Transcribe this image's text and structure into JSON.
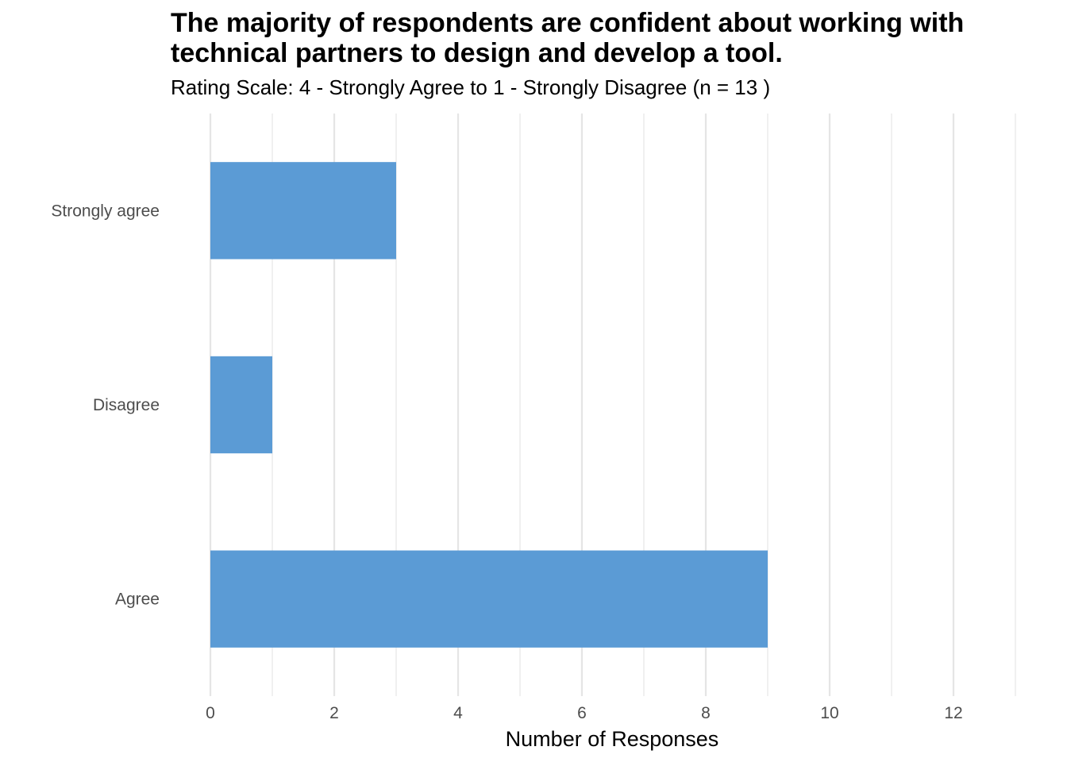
{
  "chart_data": {
    "type": "bar",
    "orientation": "horizontal",
    "title": "The majority of respondents are confident about working with technical partners to design and develop a tool.",
    "subtitle": "Rating Scale: 4 - Strongly Agree to 1 - Strongly Disagree (n = 13 )",
    "xlabel": "Number of Responses",
    "ylabel": "",
    "categories": [
      "Strongly agree",
      "Disagree",
      "Agree"
    ],
    "values": [
      3,
      1,
      9
    ],
    "xlim": [
      0,
      13
    ],
    "xticks": [
      0,
      2,
      4,
      6,
      8,
      10,
      12
    ],
    "grid": true,
    "legend": "none",
    "bar_color": "#5b9bd5"
  }
}
